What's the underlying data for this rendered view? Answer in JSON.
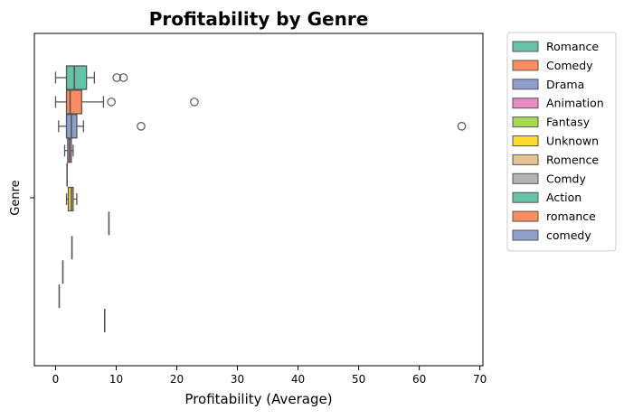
{
  "chart_data": {
    "type": "box",
    "orientation": "horizontal",
    "title": "Profitability by Genre",
    "xlabel": "Profitability (Average)",
    "ylabel": "Genre",
    "xlim": [
      -3.5,
      70.5
    ],
    "xticks": [
      0,
      10,
      20,
      30,
      40,
      50,
      60,
      70
    ],
    "grid": false,
    "legend_position": "outside-right",
    "series": [
      {
        "name": "Romance",
        "color": "#66c2a5",
        "min": 0.0,
        "q1": 1.8,
        "median": 3.1,
        "q3": 5.1,
        "max": 6.4,
        "outliers": [
          10.1,
          11.2
        ]
      },
      {
        "name": "Comedy",
        "color": "#fc8d62",
        "min": 0.0,
        "q1": 1.8,
        "median": 2.4,
        "q3": 4.3,
        "max": 7.9,
        "outliers": [
          9.2,
          22.9
        ]
      },
      {
        "name": "Drama",
        "color": "#8da0cb",
        "min": 0.5,
        "q1": 1.8,
        "median": 2.6,
        "q3": 3.5,
        "max": 4.6,
        "outliers": [
          14.1,
          67.0
        ]
      },
      {
        "name": "Animation",
        "color": "#e78ac3",
        "min": 1.5,
        "q1": 2.0,
        "median": 2.3,
        "q3": 2.6,
        "max": 2.9,
        "outliers": []
      },
      {
        "name": "Fantasy",
        "color": "#a6d854",
        "min": 1.9,
        "q1": 1.9,
        "median": 1.9,
        "q3": 1.9,
        "max": 1.9,
        "outliers": []
      },
      {
        "name": "Unknown",
        "color": "#ffd92f",
        "min": 1.8,
        "q1": 2.1,
        "median": 2.6,
        "q3": 2.9,
        "max": 3.5,
        "outliers": []
      },
      {
        "name": "Romence",
        "color": "#e5c494",
        "min": 8.8,
        "q1": 8.8,
        "median": 8.8,
        "q3": 8.8,
        "max": 8.8,
        "outliers": []
      },
      {
        "name": "Comdy",
        "color": "#b3b3b3",
        "min": 2.7,
        "q1": 2.7,
        "median": 2.7,
        "q3": 2.7,
        "max": 2.7,
        "outliers": []
      },
      {
        "name": "Action",
        "color": "#66c2a5",
        "min": 1.2,
        "q1": 1.2,
        "median": 1.2,
        "q3": 1.2,
        "max": 1.2,
        "outliers": []
      },
      {
        "name": "romance",
        "color": "#fc8d62",
        "min": 0.6,
        "q1": 0.6,
        "median": 0.6,
        "q3": 0.6,
        "max": 0.6,
        "outliers": []
      },
      {
        "name": "comedy",
        "color": "#8da0cb",
        "min": 8.1,
        "q1": 8.1,
        "median": 8.1,
        "q3": 8.1,
        "max": 8.1,
        "outliers": []
      }
    ]
  }
}
